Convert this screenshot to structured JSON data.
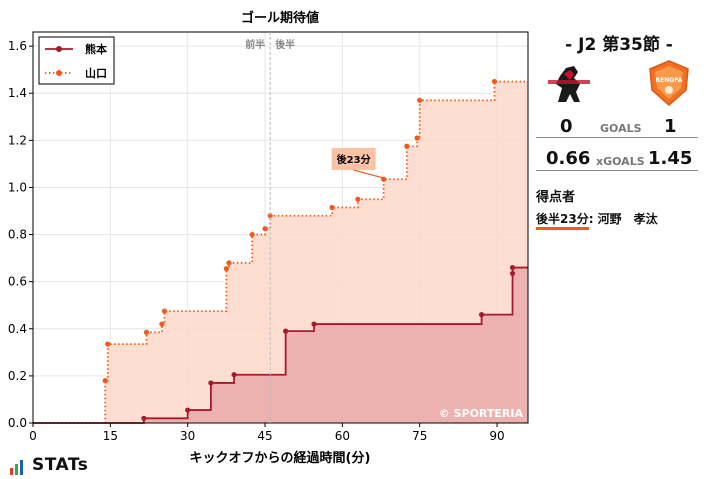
{
  "chart_data": {
    "type": "line",
    "step": true,
    "title": "ゴール期待値",
    "xlabel": "キックオフからの経過時間(分)",
    "ylabel": "",
    "xlim": [
      0,
      96
    ],
    "ylim": [
      0,
      1.66
    ],
    "xticks": [
      0,
      15,
      30,
      45,
      60,
      75,
      90
    ],
    "yticks": [
      0.0,
      0.2,
      0.4,
      0.6,
      0.8,
      1.0,
      1.2,
      1.4,
      1.6
    ],
    "half_line": 46,
    "half_labels": [
      "前半",
      "後半"
    ],
    "grid": true,
    "legend": "top-left",
    "watermark": "© SPORTERIA",
    "annotation": {
      "text": "後23分",
      "x": 68,
      "y": 1.04
    },
    "series": [
      {
        "name": "熊本",
        "color": "#a8192e",
        "fill": "#e8aaaa",
        "style": "solid",
        "shots": [
          [
            21.5,
            0.02
          ],
          [
            30,
            0.055
          ],
          [
            34.5,
            0.17
          ],
          [
            39,
            0.205
          ],
          [
            49,
            0.39
          ],
          [
            54.5,
            0.42
          ],
          [
            87,
            0.46
          ],
          [
            93,
            0.635
          ],
          [
            93,
            0.66
          ]
        ],
        "end": 96
      },
      {
        "name": "山口",
        "color": "#f05a1a",
        "fill": "#fdd8c8",
        "style": "dotted",
        "shots": [
          [
            14,
            0.18
          ],
          [
            14.5,
            0.335
          ],
          [
            22,
            0.385
          ],
          [
            25,
            0.42
          ],
          [
            25.5,
            0.475
          ],
          [
            37.5,
            0.655
          ],
          [
            38,
            0.68
          ],
          [
            42.5,
            0.8
          ],
          [
            45,
            0.825
          ],
          [
            46,
            0.88
          ],
          [
            58,
            0.915
          ],
          [
            63,
            0.95
          ],
          [
            68,
            1.035
          ],
          [
            72.5,
            1.175
          ],
          [
            74.5,
            1.21
          ],
          [
            75,
            1.37
          ],
          [
            89.5,
            1.45
          ]
        ],
        "end": 96
      }
    ]
  },
  "match": {
    "title": "- J2 第35節 -",
    "home": {
      "name": "熊本",
      "goals": "0",
      "xg": "0.66"
    },
    "away": {
      "name": "山口",
      "goals": "1",
      "xg": "1.45"
    },
    "goals_label": "GOALS",
    "xg_label": "xGOALS"
  },
  "scorers": {
    "heading": "得点者",
    "list": [
      {
        "time": "後半23分",
        "name": ": 河野　孝汰"
      }
    ]
  },
  "brand": {
    "stats_logo": "STATs",
    "crest_away_text": "RENOFA"
  }
}
